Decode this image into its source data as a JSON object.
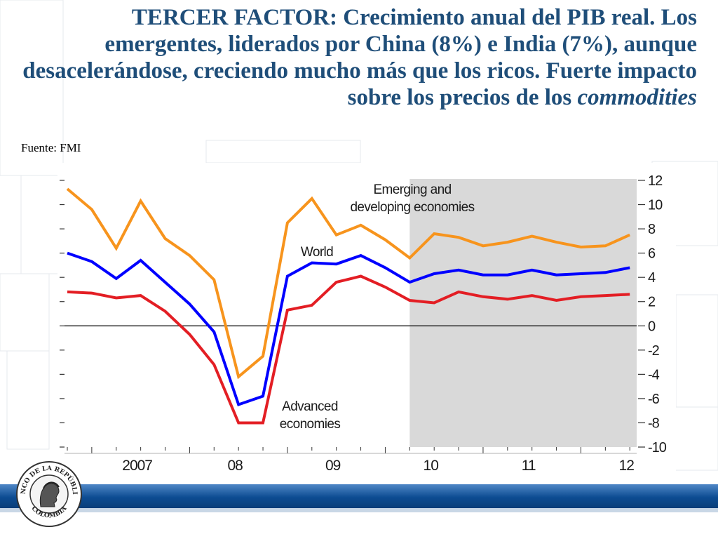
{
  "slide": {
    "title_main": "TERCER FACTOR: Crecimiento anual del PIB real. Los emergentes, liderados por China (8%) e India (7%), aunque desacelerándose, creciendo mucho más que los ricos. Fuerte impacto sobre los precios de los ",
    "title_em": "commodities",
    "source": "Fuente: FMI"
  },
  "logo": {
    "top_text": "BANCO DE LA REPÚBLICA",
    "bottom_text": "COLOMBIA"
  },
  "colors": {
    "title": "#1f4e79",
    "emerging": "#f7941d",
    "world": "#0000ff",
    "advanced": "#e31e24",
    "shaded": "#d9d9d9",
    "footer": "#0d4c92"
  },
  "chart_data": {
    "type": "line",
    "x_tick_labels": [
      "2007",
      "08",
      "09",
      "10",
      "11",
      "12"
    ],
    "x_tick_years": [
      2007,
      2008,
      2009,
      2010,
      2011,
      2012
    ],
    "ylim": [
      -10,
      12
    ],
    "y_ticks": [
      12,
      10,
      8,
      6,
      4,
      2,
      0,
      -2,
      -4,
      -6,
      -8,
      -10
    ],
    "y_tick_labels": [
      "12",
      "10",
      "8",
      "6",
      "4",
      "2",
      "0",
      "-2",
      "-4",
      "-6",
      "-8",
      "-10"
    ],
    "zero_line": true,
    "grid": false,
    "shaded_forecast_start": 2010.25,
    "x": [
      2006.75,
      2007.0,
      2007.25,
      2007.5,
      2007.75,
      2008.0,
      2008.25,
      2008.5,
      2008.75,
      2009.0,
      2009.25,
      2009.5,
      2009.75,
      2010.0,
      2010.25,
      2010.5,
      2010.75,
      2011.0,
      2011.25,
      2011.5,
      2011.75,
      2012.0,
      2012.25,
      2012.5
    ],
    "series": [
      {
        "name": "Emerging and developing economies",
        "label_lines": [
          "Emerging and",
          "developing economies"
        ],
        "color": "#f7941d",
        "values": [
          11.3,
          9.6,
          6.4,
          10.3,
          7.2,
          5.8,
          3.8,
          -4.2,
          -2.5,
          8.5,
          10.5,
          7.5,
          8.3,
          7.1,
          5.6,
          7.6,
          7.3,
          6.6,
          6.9,
          7.4,
          6.9,
          6.5,
          6.6,
          7.5
        ]
      },
      {
        "name": "World",
        "label_lines": [
          "World"
        ],
        "color": "#0000ff",
        "values": [
          6.0,
          5.3,
          3.9,
          5.4,
          3.6,
          1.8,
          -0.5,
          -6.5,
          -5.8,
          4.1,
          5.2,
          5.1,
          5.8,
          4.8,
          3.6,
          4.3,
          4.6,
          4.2,
          4.2,
          4.6,
          4.2,
          4.3,
          4.4,
          4.8
        ]
      },
      {
        "name": "Advanced economies",
        "label_lines": [
          "Advanced",
          "economies"
        ],
        "color": "#e31e24",
        "values": [
          2.8,
          2.7,
          2.3,
          2.5,
          1.2,
          -0.7,
          -3.2,
          -8.0,
          -8.0,
          1.3,
          1.7,
          3.6,
          4.1,
          3.2,
          2.1,
          1.9,
          2.8,
          2.4,
          2.2,
          2.5,
          2.1,
          2.4,
          2.5,
          2.6
        ]
      }
    ]
  }
}
